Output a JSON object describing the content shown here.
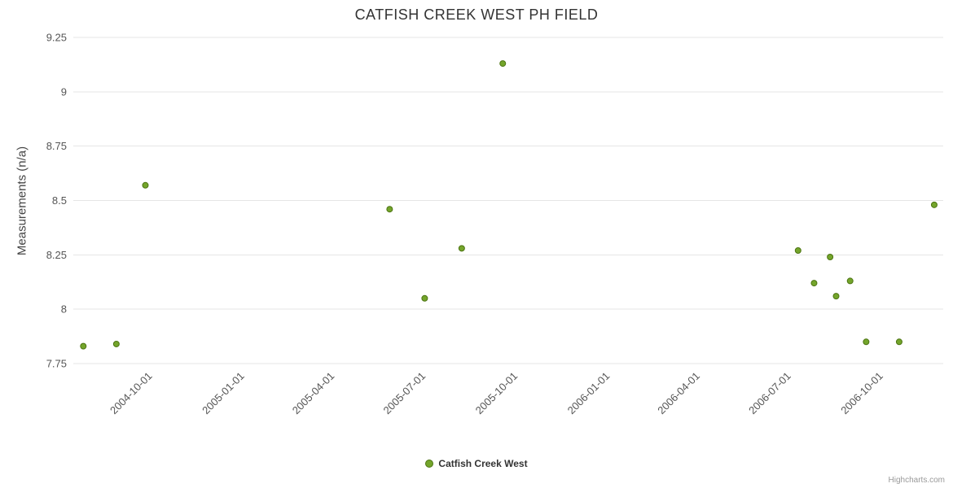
{
  "title": "CATFISH CREEK WEST PH FIELD",
  "credits": "Highcharts.com",
  "legend": {
    "items": [
      {
        "label": "Catfish Creek West",
        "marker_color": "#74a52b",
        "marker_line_color": "#4c7412"
      }
    ]
  },
  "chart_data": {
    "type": "scatter",
    "title": "CATFISH CREEK WEST PH FIELD",
    "xlabel": "",
    "ylabel": "Measurements (n/a)",
    "ylim": [
      7.75,
      9.25
    ],
    "y_ticks": [
      7.75,
      8,
      8.25,
      8.5,
      8.75,
      9,
      9.25
    ],
    "x_ticks": [
      "2004-10-01",
      "2005-01-01",
      "2005-04-01",
      "2005-07-01",
      "2005-10-01",
      "2006-01-01",
      "2006-04-01",
      "2006-07-01",
      "2006-10-01"
    ],
    "x_range": [
      "2004-07-12",
      "2006-11-28"
    ],
    "grid": "horizontal",
    "grid_color": "#e6e6e6",
    "legend_position": "bottom-center",
    "series": [
      {
        "name": "Catfish Creek West",
        "color": "#74a52b",
        "marker_line_color": "#4c7412",
        "points": [
          {
            "date": "2004-07-22",
            "value": 7.83
          },
          {
            "date": "2004-08-24",
            "value": 7.84
          },
          {
            "date": "2004-09-22",
            "value": 8.57
          },
          {
            "date": "2005-05-24",
            "value": 8.46
          },
          {
            "date": "2005-06-28",
            "value": 8.05
          },
          {
            "date": "2005-08-04",
            "value": 8.28
          },
          {
            "date": "2005-09-14",
            "value": 9.13
          },
          {
            "date": "2006-07-06",
            "value": 8.27
          },
          {
            "date": "2006-07-22",
            "value": 8.12
          },
          {
            "date": "2006-08-07",
            "value": 8.24
          },
          {
            "date": "2006-08-13",
            "value": 8.06
          },
          {
            "date": "2006-08-27",
            "value": 8.13
          },
          {
            "date": "2006-09-12",
            "value": 7.85
          },
          {
            "date": "2006-10-15",
            "value": 7.85
          },
          {
            "date": "2006-11-19",
            "value": 8.48
          }
        ]
      }
    ]
  }
}
